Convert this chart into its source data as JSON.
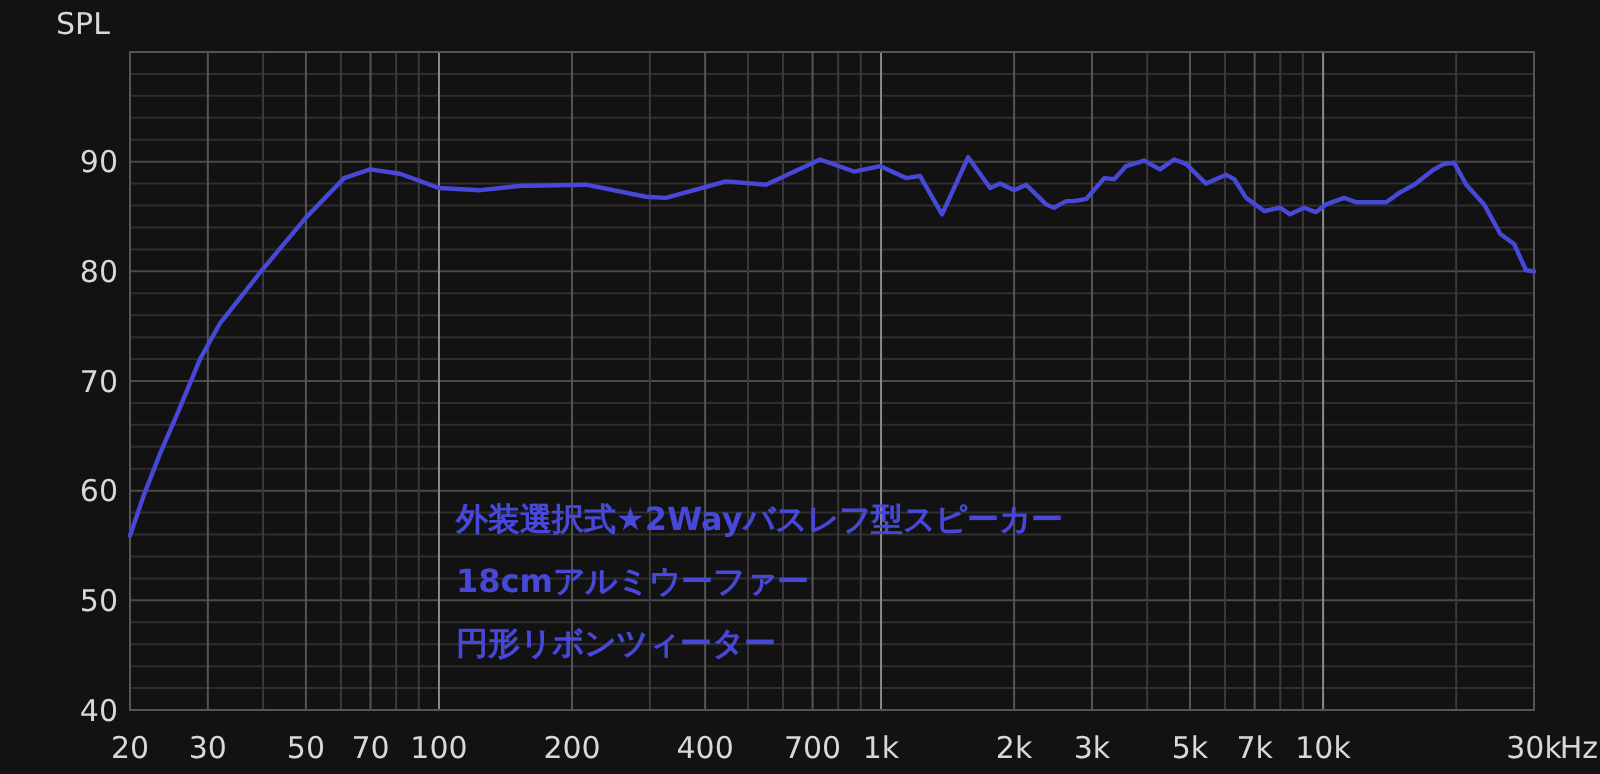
{
  "chart_data": {
    "type": "line",
    "ylabel": "SPL",
    "log": "x",
    "grid": true,
    "marker": "none",
    "line_style": "solid",
    "xlim": [
      20,
      30000
    ],
    "ylim": [
      40,
      100
    ],
    "xticks": [
      {
        "value": 20,
        "label": "20"
      },
      {
        "value": 30,
        "label": "30"
      },
      {
        "value": 40,
        "label": null
      },
      {
        "value": 50,
        "label": "50"
      },
      {
        "value": 60,
        "label": null
      },
      {
        "value": 70,
        "label": "70"
      },
      {
        "value": 80,
        "label": null
      },
      {
        "value": 90,
        "label": null
      },
      {
        "value": 100,
        "label": "100"
      },
      {
        "value": 200,
        "label": "200"
      },
      {
        "value": 300,
        "label": null
      },
      {
        "value": 400,
        "label": "400"
      },
      {
        "value": 500,
        "label": null
      },
      {
        "value": 600,
        "label": null
      },
      {
        "value": 700,
        "label": "700"
      },
      {
        "value": 800,
        "label": null
      },
      {
        "value": 900,
        "label": null
      },
      {
        "value": 1000,
        "label": "1k"
      },
      {
        "value": 2000,
        "label": "2k"
      },
      {
        "value": 3000,
        "label": "3k"
      },
      {
        "value": 4000,
        "label": null
      },
      {
        "value": 5000,
        "label": "5k"
      },
      {
        "value": 6000,
        "label": null
      },
      {
        "value": 7000,
        "label": "7k"
      },
      {
        "value": 8000,
        "label": null
      },
      {
        "value": 9000,
        "label": null
      },
      {
        "value": 10000,
        "label": "10k"
      },
      {
        "value": 20000,
        "label": null
      },
      {
        "value": 30000,
        "label": "30k"
      }
    ],
    "xlabel": "Hz",
    "yticks": [
      40,
      {
        "value": 42,
        "label": null
      },
      {
        "value": 44,
        "label": null
      },
      {
        "value": 46,
        "label": null
      },
      {
        "value": 48,
        "label": null
      },
      50,
      {
        "value": 52,
        "label": null
      },
      {
        "value": 54,
        "label": null
      },
      {
        "value": 56,
        "label": null
      },
      {
        "value": 58,
        "label": null
      },
      60,
      {
        "value": 62,
        "label": null
      },
      {
        "value": 64,
        "label": null
      },
      {
        "value": 66,
        "label": null
      },
      {
        "value": 68,
        "label": null
      },
      70,
      {
        "value": 72,
        "label": null
      },
      {
        "value": 74,
        "label": null
      },
      {
        "value": 76,
        "label": null
      },
      {
        "value": 78,
        "label": null
      },
      80,
      {
        "value": 82,
        "label": null
      },
      {
        "value": 84,
        "label": null
      },
      {
        "value": 86,
        "label": null
      },
      {
        "value": 88,
        "label": null
      },
      90,
      {
        "value": 92,
        "label": null
      },
      {
        "value": 94,
        "label": null
      },
      {
        "value": 96,
        "label": null
      },
      {
        "value": 98,
        "label": null
      }
    ],
    "series": [
      {
        "color": "#4848d8",
        "x": [
          20,
          21.5,
          23.4,
          25.9,
          28.8,
          31.9,
          39.4,
          50,
          61,
          69.8,
          81.6,
          100,
          124,
          153,
          161,
          215,
          294,
          326,
          446,
          549,
          728,
          869,
          995,
          1139,
          1225,
          1374,
          1574,
          1766,
          1860,
          2000,
          2130,
          2363,
          2463,
          2541,
          2622,
          2734,
          2911,
          3199,
          3368,
          3584,
          3938,
          4276,
          4602,
          4897,
          5434,
          6039,
          6295,
          6697,
          7362,
          7997,
          8418,
          9057,
          9638,
          10160,
          11163,
          11880,
          13900,
          14930,
          16070,
          17830,
          18790,
          19790,
          21080,
          23130,
          25180,
          27040,
          28780,
          30000
        ],
        "values": [
          55.9,
          59.6,
          63.4,
          67.5,
          72.0,
          75.2,
          79.9,
          84.9,
          88.5,
          89.3,
          88.9,
          87.6,
          87.4,
          87.8,
          87.8,
          87.9,
          86.8,
          86.7,
          88.2,
          87.9,
          90.2,
          89.1,
          89.6,
          88.5,
          88.7,
          85.2,
          90.4,
          87.6,
          88.0,
          87.4,
          87.9,
          86.1,
          85.8,
          86.1,
          86.4,
          86.4,
          86.6,
          88.5,
          88.4,
          89.6,
          90.1,
          89.3,
          90.2,
          89.8,
          88.0,
          88.8,
          88.4,
          86.7,
          85.5,
          85.8,
          85.2,
          85.8,
          85.4,
          86.1,
          86.7,
          86.3,
          86.3,
          87.2,
          87.9,
          89.3,
          89.8,
          89.9,
          87.9,
          86.1,
          83.4,
          82.5,
          80.1,
          80.0
        ]
      }
    ],
    "annotations": [
      "外装選択式★2Wayバスレフ型スピーカー",
      "18cmアルミウーファー",
      "円形リボンツィーター"
    ]
  }
}
